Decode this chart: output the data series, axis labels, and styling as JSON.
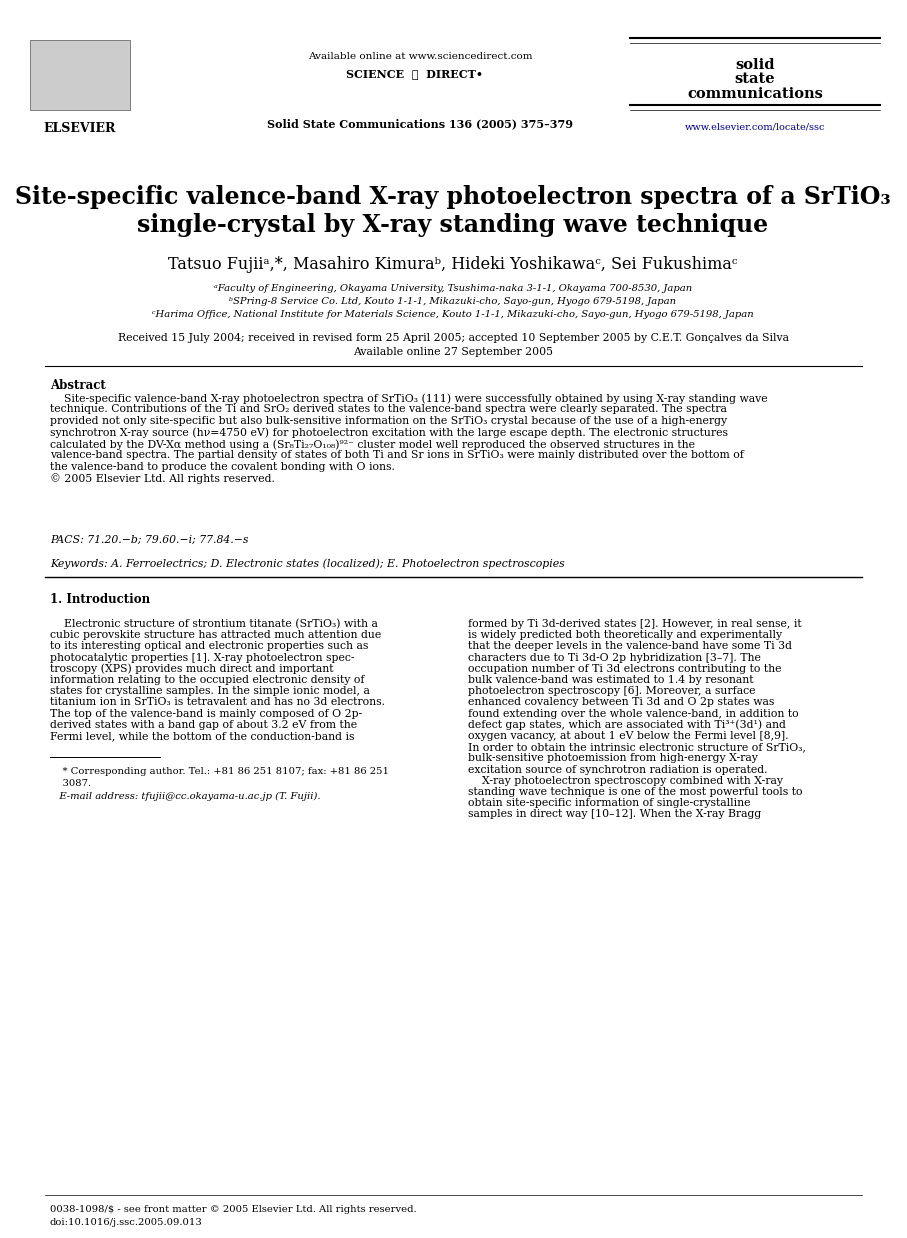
{
  "background_color": "#ffffff",
  "available_online": "Available online at www.sciencedirect.com",
  "sciencedirect": "SCIENCE  ⓓ  DIRECT•",
  "journal_name_1": "solid",
  "journal_name_2": "state",
  "journal_name_3": "communications",
  "journal_info": "Solid State Communications 136 (2005) 375–379",
  "url": "www.elsevier.com/locate/ssc",
  "elsevier_label": "ELSEVIER",
  "title_line1": "Site-specific valence-band X-ray photoelectron spectra of a SrTiO₃",
  "title_line2": "single-crystal by X-ray standing wave technique",
  "authors": "Tatsuo Fujiiᵃ,*, Masahiro Kimuraᵇ, Hideki Yoshikawaᶜ, Sei Fukushimaᶜ",
  "affil1": "ᵃFaculty of Engineering, Okayama University, Tsushima-naka 3-1-1, Okayama 700-8530, Japan",
  "affil2": "ᵇSPring-8 Service Co. Ltd, Kouto 1-1-1, Mikazuki-cho, Sayo-gun, Hyogo 679-5198, Japan",
  "affil3": "ᶜHarima Office, National Institute for Materials Science, Kouto 1-1-1, Mikazuki-cho, Sayo-gun, Hyogo 679-5198, Japan",
  "received": "Received 15 July 2004; received in revised form 25 April 2005; accepted 10 September 2005 by C.E.T. Gonçalves da Silva",
  "available": "Available online 27 September 2005",
  "abstract_title": "Abstract",
  "abstract_text_lines": [
    "    Site-specific valence-band X-ray photoelectron spectra of SrTiO₃ (111) were successfully obtained by using X-ray standing wave",
    "technique. Contributions of the Ti and SrO₂ derived states to the valence-band spectra were clearly separated. The spectra",
    "provided not only site-specific but also bulk-sensitive information on the SrTiO₃ crystal because of the use of a high-energy",
    "synchrotron X-ray source (hν=4750 eV) for photoelectron excitation with the large escape depth. The electronic structures",
    "calculated by the DV-Xα method using a (Sr₈Ti₂₇O₁₀₈)⁹²⁻ cluster model well reproduced the observed structures in the",
    "valence-band spectra. The partial density of states of both Ti and Sr ions in SrTiO₃ were mainly distributed over the bottom of",
    "the valence-band to produce the covalent bonding with O ions.",
    "© 2005 Elsevier Ltd. All rights reserved."
  ],
  "pacs": "PACS: 71.20.−b; 79.60.−i; 77.84.−s",
  "keywords": "Keywords: A. Ferroelectrics; D. Electronic states (localized); E. Photoelectron spectroscopies",
  "section1_title": "1. Introduction",
  "col1_lines": [
    "    Electronic structure of strontium titanate (SrTiO₃) with a",
    "cubic perovskite structure has attracted much attention due",
    "to its interesting optical and electronic properties such as",
    "photocatalytic properties [1]. X-ray photoelectron spec-",
    "troscopy (XPS) provides much direct and important",
    "information relating to the occupied electronic density of",
    "states for crystalline samples. In the simple ionic model, a",
    "titanium ion in SrTiO₃ is tetravalent and has no 3d electrons.",
    "The top of the valence-band is mainly composed of O 2p-",
    "derived states with a band gap of about 3.2 eV from the",
    "Fermi level, while the bottom of the conduction-band is"
  ],
  "col2_lines": [
    "formed by Ti 3d-derived states [2]. However, in real sense, it",
    "is widely predicted both theoretically and experimentally",
    "that the deeper levels in the valence-band have some Ti 3d",
    "characters due to Ti 3d-O 2p hybridization [3–7]. The",
    "occupation number of Ti 3d electrons contributing to the",
    "bulk valence-band was estimated to 1.4 by resonant",
    "photoelectron spectroscopy [6]. Moreover, a surface",
    "enhanced covalency between Ti 3d and O 2p states was",
    "found extending over the whole valence-band, in addition to",
    "defect gap states, which are associated with Ti³⁺(3d¹) and",
    "oxygen vacancy, at about 1 eV below the Fermi level [8,9].",
    "In order to obtain the intrinsic electronic structure of SrTiO₃,",
    "bulk-sensitive photoemission from high-energy X-ray",
    "excitation source of synchrotron radiation is operated.",
    "    X-ray photoelectron spectroscopy combined with X-ray",
    "standing wave technique is one of the most powerful tools to",
    "obtain site-specific information of single-crystalline",
    "samples in direct way [10–12]. When the X-ray Bragg"
  ],
  "footnote_line": "* Corresponding author. Tel.: +81 86 251 8107; fax: +81 86 251",
  "footnote_line2": "3087.",
  "footnote_email": "   E-mail address: tfujii@cc.okayama-u.ac.jp (T. Fujii).",
  "footer1": "0038-1098/$ - see front matter © 2005 Elsevier Ltd. All rights reserved.",
  "footer2": "doi:10.1016/j.ssc.2005.09.013",
  "url_color": "#00008B",
  "ref_color": "#00008B"
}
